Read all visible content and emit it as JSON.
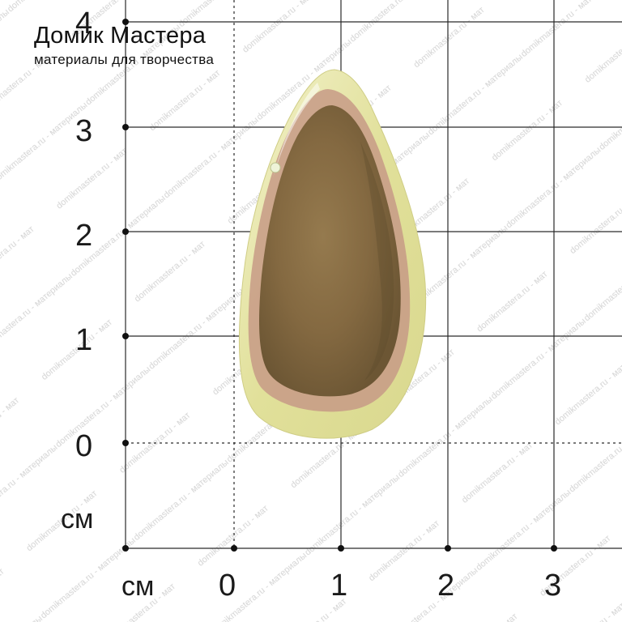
{
  "brand": {
    "title": "Домик Мастера",
    "subtitle": "материалы для творчества"
  },
  "watermark": {
    "text": "domikmastera.ru - материалы для творчества"
  },
  "ruler": {
    "unit_left": "см",
    "unit_bottom": "см",
    "y_ticks": [
      "4",
      "3",
      "2",
      "1",
      "0"
    ],
    "x_ticks": [
      "0",
      "1",
      "2",
      "3"
    ]
  },
  "object": {
    "name": "teardrop-stone-pendant",
    "colors": {
      "rim": "#e4e3a2",
      "rim_light": "#f1f0c6",
      "core": "#8a6e42",
      "core_dark": "#6b5532",
      "pink_band": "#c89a86"
    }
  }
}
